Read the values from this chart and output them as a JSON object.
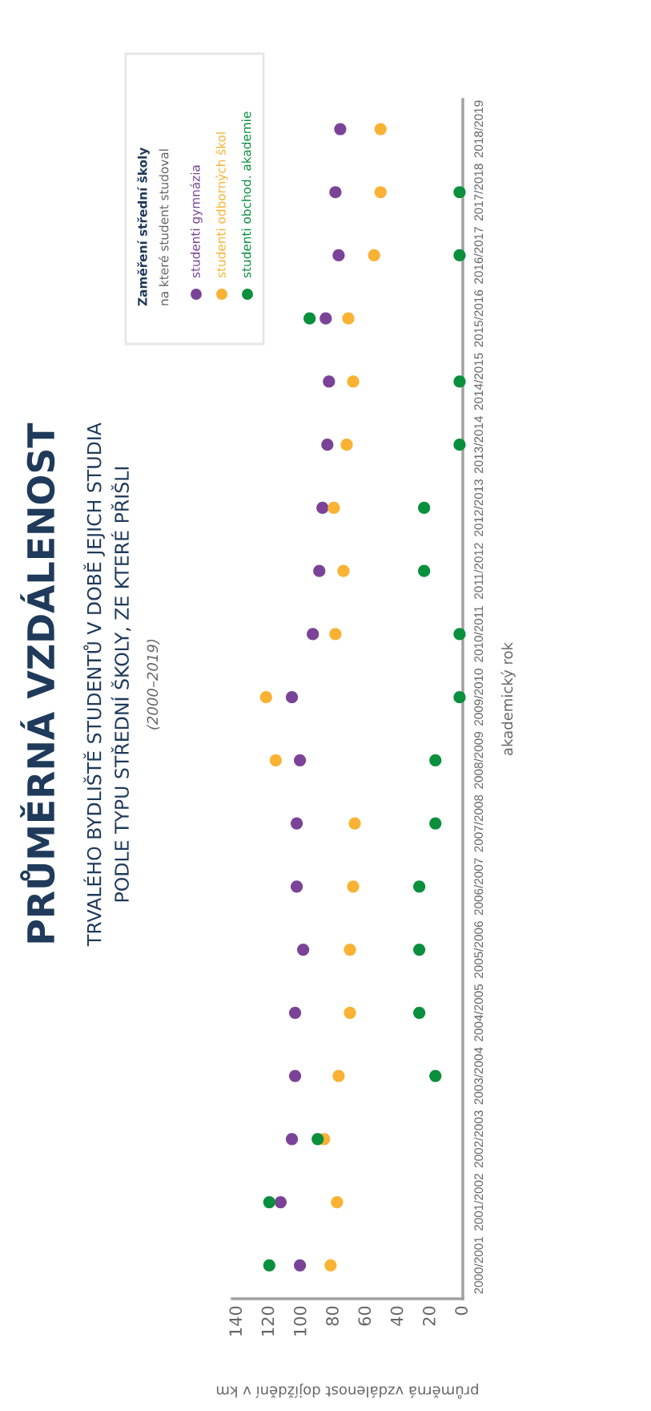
{
  "chart_data": {
    "type": "scatter",
    "orientation": "horizontal",
    "title": "PRŮMĚRNÁ VZDÁLENOST",
    "subtitle": "TRVALÉHO BYDLIŠTĚ STUDENTŮ V DOBĚ JEJICH STUDIA\nPODLE TYPU STŘEDNÍ ŠKOLY, ZE KTERÉ PŘIŠLI",
    "annotations": [
      "(2000–2019)"
    ],
    "xlabel": "průměrná vzdálenost dojíždění v km",
    "ylabel": "akademický rok",
    "legend_title": "Zaměření střední školy\nna které student studoval",
    "categories": [
      "2018/2019",
      "2017/2018",
      "2016/2017",
      "2015/2016",
      "2014/2015",
      "2013/2014",
      "2012/2013",
      "2011/2012",
      "2010/2011",
      "2009/2010",
      "2008/2009",
      "2007/2008",
      "2006/2007",
      "2005/2006",
      "2004/2005",
      "2003/2004",
      "2002/2003",
      "2001/2002",
      "2000/2001"
    ],
    "series": [
      {
        "name": "studenti gymnázia",
        "color": "#7b4397",
        "values": [
          76,
          79,
          77,
          85,
          83,
          84,
          87,
          89,
          93,
          106,
          101,
          103,
          103,
          99,
          104,
          104,
          106,
          113,
          101
        ]
      },
      {
        "name": "studenti odborných škol",
        "color": "#f9b233",
        "values": [
          51,
          51,
          55,
          71,
          68,
          72,
          80,
          74,
          79,
          122,
          116,
          67,
          68,
          70,
          70,
          77,
          86,
          78,
          82
        ]
      },
      {
        "name": "studenti obchod. akademie",
        "color": "#0a8f3c",
        "values": [
          null,
          2,
          2,
          95,
          2,
          2,
          24,
          24,
          2,
          2,
          17,
          17,
          27,
          27,
          27,
          17,
          90,
          120,
          120
        ]
      }
    ],
    "xlim": [
      143,
      0
    ],
    "xticks": [
      140,
      120,
      100,
      80,
      60,
      40,
      20,
      0
    ],
    "grid": false,
    "legend": "top left",
    "marker": "circle"
  }
}
